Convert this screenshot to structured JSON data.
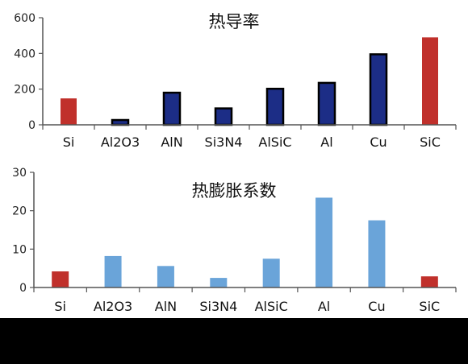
{
  "chart_data": [
    {
      "type": "bar",
      "title": "热导率",
      "xlabel": "",
      "ylabel": "",
      "categories": [
        "Si",
        "Al2O3",
        "AlN",
        "Si3N4",
        "AlSiC",
        "Al",
        "Cu",
        "SiC"
      ],
      "values": [
        148,
        27,
        180,
        92,
        202,
        235,
        395,
        490
      ],
      "ylim": [
        0,
        600
      ],
      "yticks": [
        "0",
        "200",
        "400",
        "600"
      ],
      "grid": false,
      "colors": {
        "highlight": "#c0302b",
        "fill": "#1c2d86",
        "outline": "#000000"
      },
      "bar_colors": [
        "highlight",
        "fill",
        "fill",
        "fill",
        "fill",
        "fill",
        "fill",
        "highlight"
      ]
    },
    {
      "type": "bar",
      "title": "热膨胀系数",
      "xlabel": "",
      "ylabel": "",
      "categories": [
        "Si",
        "Al2O3",
        "AlN",
        "Si3N4",
        "AlSiC",
        "Al",
        "Cu",
        "SiC"
      ],
      "values": [
        4.2,
        8.2,
        5.6,
        2.5,
        7.5,
        23.4,
        17.5,
        2.9
      ],
      "ylim": [
        0,
        30
      ],
      "yticks": [
        "0",
        "10",
        "20",
        "30"
      ],
      "grid": false,
      "colors": {
        "highlight": "#c0302b",
        "fill": "#6aa4d9"
      },
      "bar_colors": [
        "highlight",
        "fill",
        "fill",
        "fill",
        "fill",
        "fill",
        "fill",
        "highlight"
      ]
    }
  ]
}
